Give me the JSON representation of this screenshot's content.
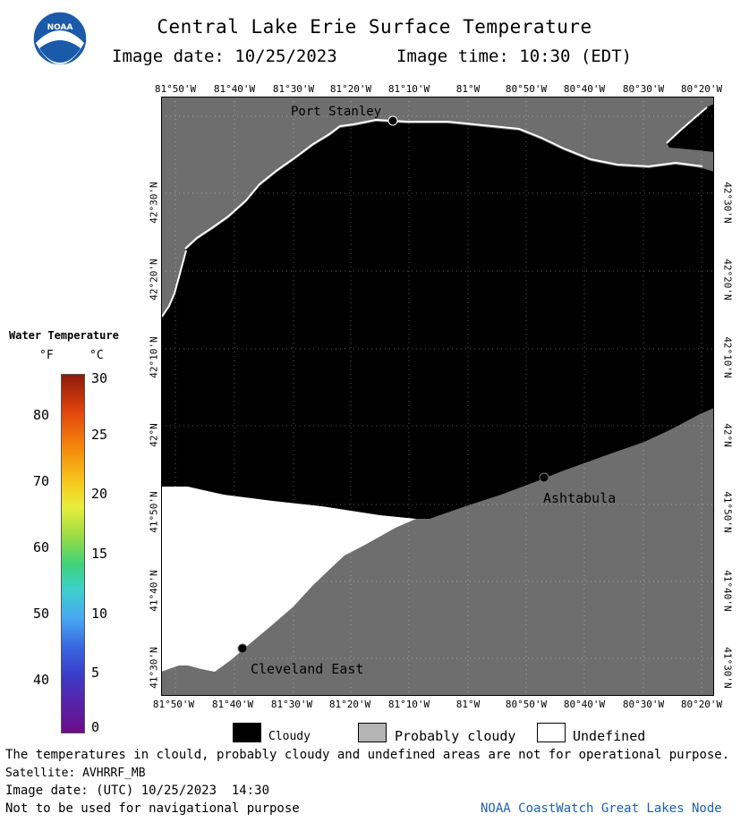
{
  "header": {
    "title": "Central Lake Erie Surface Temperature",
    "image_date": "Image date: 10/25/2023",
    "image_time": "Image time: 10:30 (EDT)"
  },
  "logo": {
    "text": "NOAA"
  },
  "map": {
    "lon_ticks": [
      "81°50'W",
      "81°40'W",
      "81°30'W",
      "81°20'W",
      "81°10'W",
      "81°W",
      "80°50'W",
      "80°40'W",
      "80°30'W",
      "80°20'W"
    ],
    "lat_ticks": [
      "42°30'N",
      "42°20'N",
      "42°10'N",
      "42°N",
      "41°50'N",
      "41°40'N",
      "41°30'N"
    ],
    "places": [
      {
        "name": "Port Stanley"
      },
      {
        "name": "Ashtabula"
      },
      {
        "name": "Cleveland East"
      }
    ],
    "colors": {
      "land": "#6e6e6e",
      "cloudy": "#000000",
      "undefined": "#ffffff",
      "probably_cloudy": "#b4b4b4"
    }
  },
  "legend": {
    "title": "Water Temperature",
    "unit_f": "°F",
    "unit_c": "°C",
    "f_ticks": [
      "80",
      "70",
      "60",
      "50",
      "40"
    ],
    "c_ticks": [
      "30",
      "25",
      "20",
      "15",
      "10",
      "5",
      "0"
    ]
  },
  "key": {
    "cloudy": "Cloudy",
    "probably_cloudy": "Probably cloudy",
    "undefined": "Undefined"
  },
  "footer": {
    "disclaimer": "The temperatures in clould, probably cloudy and undefined areas are not for operational purpose.",
    "satellite": "Satellite: AVHRRF_MB",
    "utc_date": "Image date: (UTC) 10/25/2023  14:30",
    "nav_warning": "Not to be used for navigational purpose",
    "node": "NOAA CoastWatch Great Lakes Node"
  }
}
